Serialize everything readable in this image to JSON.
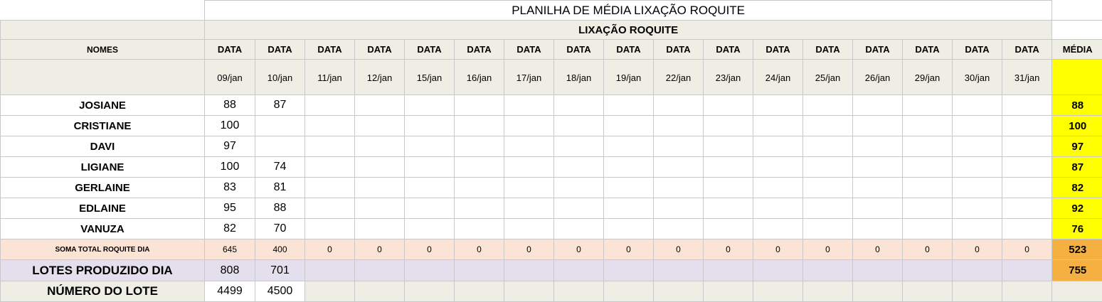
{
  "sheet": {
    "title": "PLANILHA DE MÉDIA LIXAÇÃO ROQUITE",
    "subtitle": "LIXAÇÃO ROQUITE",
    "headers": {
      "names": "NOMES",
      "data": "DATA",
      "media": "MÉDIA"
    },
    "dates": [
      "09/jan",
      "10/jan",
      "11/jan",
      "12/jan",
      "15/jan",
      "16/jan",
      "17/jan",
      "18/jan",
      "19/jan",
      "22/jan",
      "23/jan",
      "24/jan",
      "25/jan",
      "26/jan",
      "29/jan",
      "30/jan",
      "31/jan"
    ],
    "people": [
      {
        "name": "JOSIANE",
        "values": [
          "88",
          "87"
        ],
        "media": "88"
      },
      {
        "name": "CRISTIANE",
        "values": [
          "100",
          ""
        ],
        "media": "100"
      },
      {
        "name": "DAVI",
        "values": [
          "97",
          ""
        ],
        "media": "97"
      },
      {
        "name": "LIGIANE",
        "values": [
          "100",
          "74"
        ],
        "media": "87"
      },
      {
        "name": "GERLAINE",
        "values": [
          "83",
          "81"
        ],
        "media": "82"
      },
      {
        "name": "EDLAINE",
        "values": [
          "95",
          "88"
        ],
        "media": "92"
      },
      {
        "name": "VANUZA",
        "values": [
          "82",
          "70"
        ],
        "media": "76"
      }
    ],
    "soma": {
      "label": "SOMA TOTAL  ROQUITE DIA",
      "values": [
        "645",
        "400",
        "0",
        "0",
        "0",
        "0",
        "0",
        "0",
        "0",
        "0",
        "0",
        "0",
        "0",
        "0",
        "0",
        "0",
        "0"
      ],
      "media": "523"
    },
    "lotes": {
      "label": "LOTES PRODUZIDO DIA",
      "values": [
        "808",
        "701"
      ],
      "media": "755"
    },
    "numero": {
      "label": "NÚMERO DO LOTE",
      "values": [
        "4499",
        "4500"
      ]
    }
  },
  "colors": {
    "header_beige": "#efeee4",
    "media_yellow": "#ffff00",
    "soma_peach": "#fbe3d5",
    "media_orange": "#f4b041",
    "lotes_lavender": "#e3dfec"
  }
}
